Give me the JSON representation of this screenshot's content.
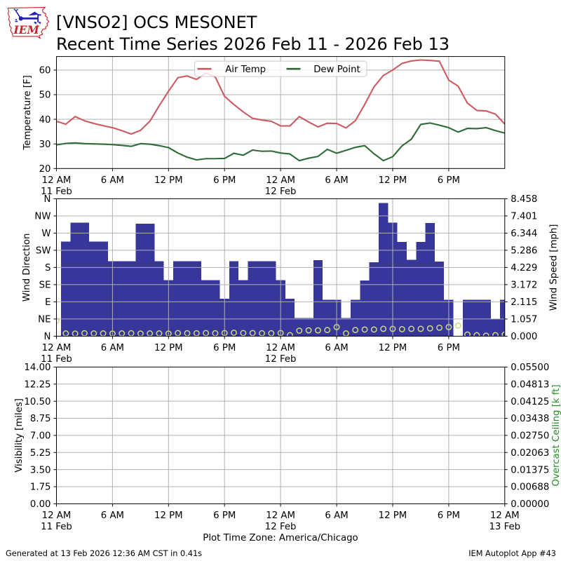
{
  "header": {
    "title_line1": "[VNSO2] OCS MESONET",
    "title_line2": "Recent Time Series 2026 Feb 11 - 2026 Feb 13",
    "logo_text": "IEM"
  },
  "footer": {
    "generated_text": "Generated at 13 Feb 2026 12:36 AM CST in 0.41s",
    "app_text": "IEM Autoplot App #43"
  },
  "colors": {
    "air_temp": "#cd5a60",
    "dew_point": "#2c6b34",
    "wind_bar": "#36369b",
    "wind_marker": "#d0d87e",
    "ceiling_label": "#228b22",
    "grid": "#b0b0b0",
    "spine": "#000000",
    "legend_edge": "#cccccc",
    "logo_red": "#cc2229",
    "logo_blue": "#2222bb"
  },
  "x_axis": {
    "hours_span": 48,
    "xlabel": "Plot Time Zone: America/Chicago",
    "ticks": [
      {
        "h": 0,
        "label": "12 AM",
        "sub": "11 Feb"
      },
      {
        "h": 6,
        "label": "6 AM"
      },
      {
        "h": 12,
        "label": "12 PM"
      },
      {
        "h": 18,
        "label": "6 PM"
      },
      {
        "h": 24,
        "label": "12 AM",
        "sub": "12 Feb"
      },
      {
        "h": 30,
        "label": "6 AM"
      },
      {
        "h": 36,
        "label": "12 PM"
      },
      {
        "h": 42,
        "label": "6 PM"
      },
      {
        "h": 48,
        "label": "12 AM",
        "sub": "13 Feb",
        "bottom_only": true
      }
    ]
  },
  "chart_data": [
    {
      "type": "line",
      "panel": "temperature",
      "ylabel": "Temperature [F]",
      "ylim": [
        20,
        65.5
      ],
      "yticks": [
        20,
        30,
        40,
        50,
        60
      ],
      "grid": true,
      "legend_position": "upper center",
      "x_hours_start": 0,
      "x_hours_step": 1,
      "series": [
        {
          "name": "Air Temp",
          "color": "#cd5a60",
          "values": [
            39.2,
            38.0,
            41.1,
            39.4,
            38.3,
            37.4,
            36.6,
            35.4,
            34.0,
            35.5,
            39.2,
            45.5,
            51.4,
            56.9,
            57.6,
            56.2,
            58.8,
            57.2,
            49.3,
            46.0,
            43.0,
            40.4,
            39.7,
            39.2,
            37.3,
            37.3,
            41.1,
            38.9,
            36.9,
            38.4,
            38.3,
            36.5,
            39.4,
            46.0,
            53.2,
            57.8,
            60.0,
            62.7,
            63.7,
            64.1,
            63.9,
            63.6,
            55.9,
            53.5,
            46.6,
            43.6,
            43.4,
            42.1,
            38.1
          ]
        },
        {
          "name": "Dew Point",
          "color": "#2c6b34",
          "values": [
            29.6,
            30.2,
            30.4,
            30.1,
            30.0,
            29.9,
            29.7,
            29.4,
            29.0,
            30.1,
            29.9,
            29.3,
            28.5,
            26.3,
            24.6,
            23.5,
            24.0,
            24.0,
            24.1,
            26.2,
            25.4,
            27.5,
            27.0,
            27.1,
            26.3,
            25.9,
            23.2,
            24.2,
            24.9,
            27.8,
            26.2,
            27.4,
            28.6,
            29.3,
            26.0,
            23.2,
            24.8,
            29.2,
            31.9,
            37.9,
            38.5,
            37.6,
            36.6,
            34.8,
            36.3,
            36.2,
            36.6,
            35.4,
            34.4
          ]
        }
      ]
    },
    {
      "type": "bar+scatter",
      "panel": "wind",
      "ylabel": "Wind Direction",
      "ylabel_right": "Wind Speed [mph]",
      "dir_ylim": [
        0,
        360
      ],
      "dir_tick_labels": [
        "N",
        "NE",
        "E",
        "SE",
        "S",
        "SW",
        "W",
        "NW",
        "N"
      ],
      "speed_ylim": [
        0,
        8.458
      ],
      "speed_tick_labels": [
        "0.000",
        "1.057",
        "2.115",
        "3.172",
        "4.229",
        "5.286",
        "6.344",
        "7.401",
        "8.458"
      ],
      "bar_series": {
        "name": "Wind Direction [deg]",
        "values": [
          null,
          248,
          297,
          297,
          248,
          248,
          196,
          196,
          196,
          295,
          295,
          196,
          147,
          196,
          196,
          196,
          147,
          147,
          98,
          196,
          147,
          196,
          196,
          196,
          147,
          98,
          48,
          48,
          199,
          95,
          95,
          48,
          95,
          146,
          194,
          349,
          297,
          247,
          200,
          247,
          296,
          195,
          95,
          null,
          95,
          95,
          95,
          46,
          95
        ]
      },
      "marker_series": {
        "name": "Wind Speed [mph]",
        "values": [
          0.95,
          0.17,
          0.16,
          0.18,
          0.17,
          0.17,
          0.16,
          0.17,
          0.18,
          0.16,
          0.17,
          0.17,
          0.16,
          0.19,
          0.18,
          0.18,
          0.19,
          0.18,
          0.19,
          0.21,
          0.19,
          0.19,
          0.18,
          0.18,
          0.19,
          0.06,
          0.34,
          0.36,
          0.36,
          0.38,
          0.56,
          0.17,
          0.38,
          0.41,
          0.41,
          0.45,
          0.45,
          0.43,
          0.45,
          0.45,
          0.48,
          0.52,
          0.56,
          0.65,
          0.1,
          0.06,
          0.03,
          0.06,
          0.1
        ]
      }
    },
    {
      "type": "empty",
      "panel": "visibility",
      "ylabel": "Visibility [miles]",
      "ylabel_right": "Overcast Ceiling [k ft]",
      "ylim": [
        0,
        14
      ],
      "ytick_labels": [
        "0.00",
        "1.75",
        "3.50",
        "5.25",
        "7.00",
        "8.75",
        "10.50",
        "12.25",
        "14.00"
      ],
      "right_ylim": [
        0,
        0.055
      ],
      "right_tick_labels": [
        "0.00000",
        "0.00688",
        "0.01375",
        "0.02063",
        "0.02750",
        "0.03438",
        "0.04125",
        "0.04813",
        "0.05500"
      ],
      "series": []
    }
  ]
}
